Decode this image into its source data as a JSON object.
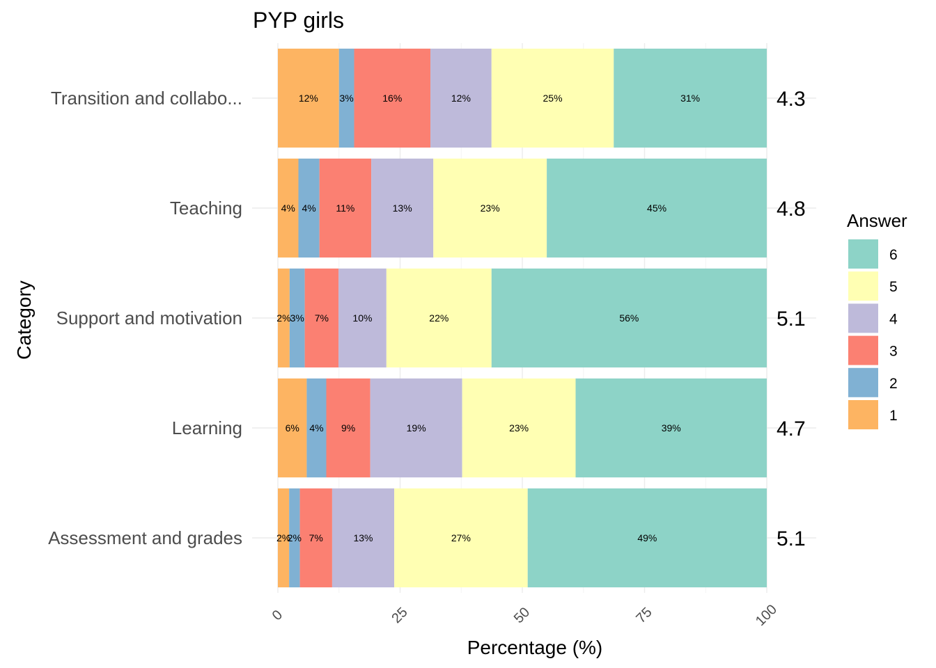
{
  "chart_data": {
    "type": "bar",
    "orientation": "horizontal",
    "stacked": true,
    "title": "PYP girls",
    "xlabel": "Percentage (%)",
    "ylabel": "Category",
    "xlim": [
      0,
      100
    ],
    "x_ticks": [
      "0",
      "25",
      "50",
      "75",
      "100"
    ],
    "grid": true,
    "legend_title": "Answer",
    "legend_placement": "right",
    "categories": [
      "Transition and collabo...",
      "Teaching",
      "Support and motivation",
      "Learning",
      "Assessment and grades"
    ],
    "means": [
      "4.3",
      "4.8",
      "5.1",
      "4.7",
      "5.1"
    ],
    "series": [
      {
        "name": "1",
        "color": "#FDB462",
        "values": [
          12.5,
          4.2,
          2.4,
          5.9,
          2.3
        ],
        "labels": [
          "12%",
          "4%",
          "2%",
          "6%",
          "2%"
        ]
      },
      {
        "name": "2",
        "color": "#80B1D3",
        "values": [
          3.1,
          4.3,
          3.1,
          4.0,
          2.2
        ],
        "labels": [
          "3%",
          "4%",
          "3%",
          "4%",
          "2%"
        ]
      },
      {
        "name": "3",
        "color": "#FB8072",
        "values": [
          15.6,
          10.6,
          6.9,
          9.0,
          6.6
        ],
        "labels": [
          "16%",
          "11%",
          "7%",
          "9%",
          "7%"
        ]
      },
      {
        "name": "4",
        "color": "#BEBADA",
        "values": [
          12.5,
          12.7,
          9.8,
          18.8,
          12.7
        ],
        "labels": [
          "12%",
          "13%",
          "10%",
          "19%",
          "13%"
        ]
      },
      {
        "name": "5",
        "color": "#FFFFB3",
        "values": [
          25.0,
          23.2,
          21.5,
          23.2,
          27.3
        ],
        "labels": [
          "25%",
          "23%",
          "22%",
          "23%",
          "27%"
        ]
      },
      {
        "name": "6",
        "color": "#8DD3C7",
        "values": [
          31.3,
          45.0,
          56.3,
          39.1,
          48.9
        ],
        "labels": [
          "31%",
          "45%",
          "56%",
          "39%",
          "49%"
        ]
      }
    ]
  }
}
